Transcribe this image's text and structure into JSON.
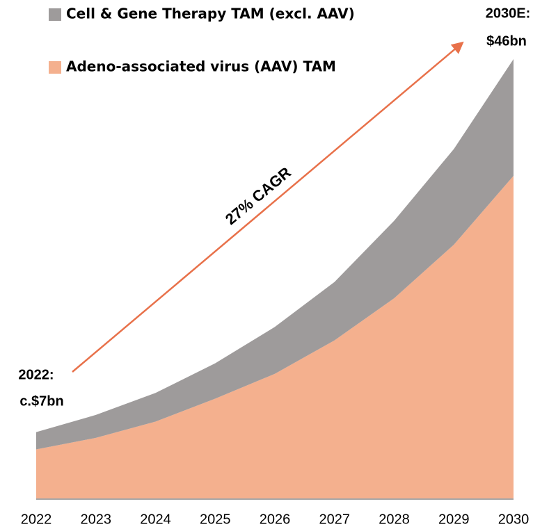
{
  "chart_data": {
    "type": "stacked_area",
    "categories": [
      "2022",
      "2023",
      "2024",
      "2025",
      "2026",
      "2027",
      "2028",
      "2029",
      "2030"
    ],
    "series": [
      {
        "name": "Adeno-associated virus (AAV) TAM",
        "color": "#f4b08e",
        "values": [
          5.2,
          6.4,
          8.1,
          10.5,
          13.1,
          16.6,
          21.0,
          26.6,
          33.8
        ]
      },
      {
        "name": "Cell & Gene Therapy TAM (excl. AAV)",
        "color": "#9e9b9b",
        "values": [
          1.8,
          2.4,
          3.0,
          3.7,
          4.9,
          6.1,
          8.1,
          10.0,
          12.2
        ]
      }
    ],
    "ylim": [
      0,
      46
    ],
    "annotations": [
      "2022:",
      "c.$7bn",
      "2030E:",
      "$46bn",
      "27% CAGR"
    ],
    "arrow_color": "#e8714a"
  }
}
